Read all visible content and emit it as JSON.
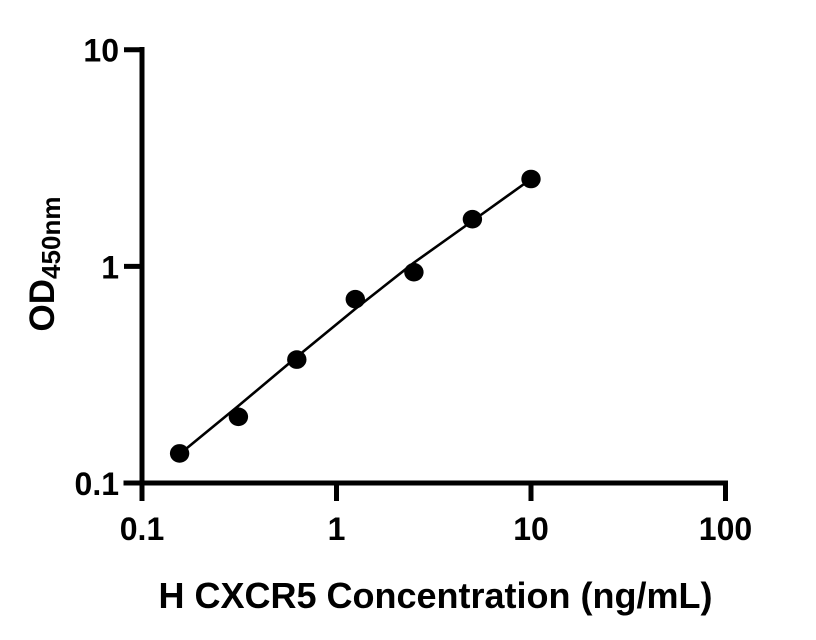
{
  "figure": {
    "background_color": "#ffffff",
    "ink_color": "#000000"
  },
  "chart_data": {
    "type": "scatter",
    "subtype": "standard-curve-with-fit-line",
    "title": "",
    "xlabel": "H CXCR5 Concentration (ng/mL)",
    "ylabel_main": "OD",
    "ylabel_sub": "450nm",
    "x_scale": "log",
    "y_scale": "log",
    "xlim": [
      0.1,
      100
    ],
    "ylim": [
      0.1,
      10
    ],
    "grid": false,
    "legend_position": "none",
    "x_ticks": [
      {
        "value": 0.1,
        "label": "0.1"
      },
      {
        "value": 1,
        "label": "1"
      },
      {
        "value": 10,
        "label": "10"
      },
      {
        "value": 100,
        "label": "100"
      }
    ],
    "y_ticks": [
      {
        "value": 0.1,
        "label": "0.1"
      },
      {
        "value": 1,
        "label": "1"
      },
      {
        "value": 10,
        "label": "10"
      }
    ],
    "series": [
      {
        "name": "standard-points",
        "type": "scatter",
        "marker": "filled-circle",
        "color": "#000000",
        "x": [
          0.156,
          0.313,
          0.625,
          1.25,
          2.5,
          5,
          10
        ],
        "y": [
          0.137,
          0.202,
          0.371,
          0.705,
          0.94,
          1.65,
          2.53
        ]
      },
      {
        "name": "fit-line",
        "type": "line",
        "color": "#000000",
        "x": [
          0.156,
          0.313,
          0.625,
          1.25,
          2.5,
          5,
          10
        ],
        "y": [
          0.136,
          0.227,
          0.382,
          0.636,
          1.04,
          1.62,
          2.53
        ]
      }
    ]
  }
}
